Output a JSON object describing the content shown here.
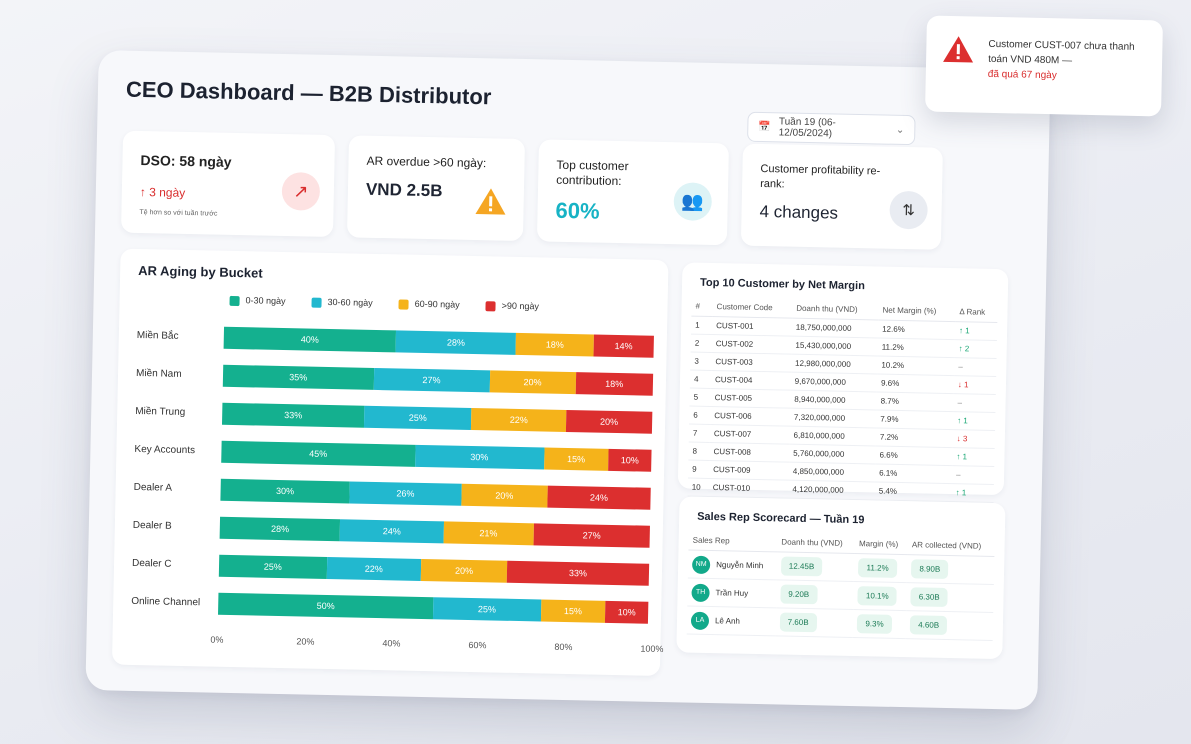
{
  "title": "CEO Dashboard — B2B Distributor",
  "date_range": "Tuần 19 (06-12/05/2024)",
  "kpis": {
    "dso": {
      "label": "DSO: 58 ngày",
      "delta": "3 ngày",
      "note": "Tệ hơn so với tuần trước"
    },
    "ar_overdue": {
      "label": "AR overdue >60 ngày:",
      "value": "VND 2.5B"
    },
    "top_customer": {
      "label": "Top customer contribution:",
      "value": "60%"
    },
    "profitability": {
      "label": "Customer profitability re-rank:",
      "value": "4 changes"
    }
  },
  "ar_aging": {
    "title": "AR Aging by Bucket",
    "legend": [
      "0-30 ngày",
      "30-60 ngày",
      "60-90 ngày",
      ">90 ngày"
    ],
    "colors": [
      "#14b08f",
      "#22b8cf",
      "#f5b31a",
      "#dc2f2f"
    ],
    "rows": [
      {
        "label": "Miền Bắc",
        "values": [
          "40%",
          "28%",
          "18%",
          "14%"
        ]
      },
      {
        "label": "Miền Nam",
        "values": [
          "35%",
          "27%",
          "20%",
          "18%"
        ]
      },
      {
        "label": "Miền Trung",
        "values": [
          "33%",
          "25%",
          "22%",
          "20%"
        ]
      },
      {
        "label": "Key Accounts",
        "values": [
          "45%",
          "30%",
          "15%",
          "10%"
        ]
      },
      {
        "label": "Dealer A",
        "values": [
          "30%",
          "26%",
          "20%",
          "24%"
        ]
      },
      {
        "label": "Dealer B",
        "values": [
          "28%",
          "24%",
          "21%",
          "27%"
        ]
      },
      {
        "label": "Dealer C",
        "values": [
          "25%",
          "22%",
          "20%",
          "33%"
        ]
      },
      {
        "label": "Online Channel",
        "values": [
          "50%",
          "25%",
          "15%",
          "10%"
        ]
      }
    ],
    "axis": [
      "0%",
      "20%",
      "40%",
      "60%",
      "80%",
      "100%"
    ]
  },
  "top10": {
    "title": "Top 10 Customer by Net Margin",
    "headers": [
      "#",
      "Customer Code",
      "Doanh thu (VND)",
      "Net Margin (%)",
      "Δ Rank"
    ],
    "rows": [
      [
        "1",
        "CUST-001",
        "18,750,000,000",
        "12.6%",
        "↑ 1"
      ],
      [
        "2",
        "CUST-002",
        "15,430,000,000",
        "11.2%",
        "↑ 2"
      ],
      [
        "3",
        "CUST-003",
        "12,980,000,000",
        "10.2%",
        "–"
      ],
      [
        "4",
        "CUST-004",
        "9,670,000,000",
        "9.6%",
        "↓ 1"
      ],
      [
        "5",
        "CUST-005",
        "8,940,000,000",
        "8.7%",
        "–"
      ],
      [
        "6",
        "CUST-006",
        "7,320,000,000",
        "7.9%",
        "↑ 1"
      ],
      [
        "7",
        "CUST-007",
        "6,810,000,000",
        "7.2%",
        "↓ 3"
      ],
      [
        "8",
        "CUST-008",
        "5,760,000,000",
        "6.6%",
        "↑ 1"
      ],
      [
        "9",
        "CUST-009",
        "4,850,000,000",
        "6.1%",
        "–"
      ],
      [
        "10",
        "CUST-010",
        "4,120,000,000",
        "5.4%",
        "↑ 1"
      ]
    ]
  },
  "scorecard": {
    "title": "Sales Rep Scorecard — Tuần 19",
    "headers": [
      "Sales Rep",
      "Doanh thu (VND)",
      "Margin (%)",
      "AR collected (VND)"
    ],
    "rows": [
      {
        "initials": "NM",
        "name": "Nguyễn Minh",
        "revenue": "12.45B",
        "margin": "11.2%",
        "ar": "8.90B"
      },
      {
        "initials": "TH",
        "name": "Trần Huy",
        "revenue": "9.20B",
        "margin": "10.1%",
        "ar": "6.30B"
      },
      {
        "initials": "LA",
        "name": "Lê Anh",
        "revenue": "7.60B",
        "margin": "9.3%",
        "ar": "4.60B"
      }
    ]
  },
  "toast": {
    "line1": "Customer CUST-007 chưa thanh toán VND 480M —",
    "line2": "đã quá 67 ngày"
  }
}
